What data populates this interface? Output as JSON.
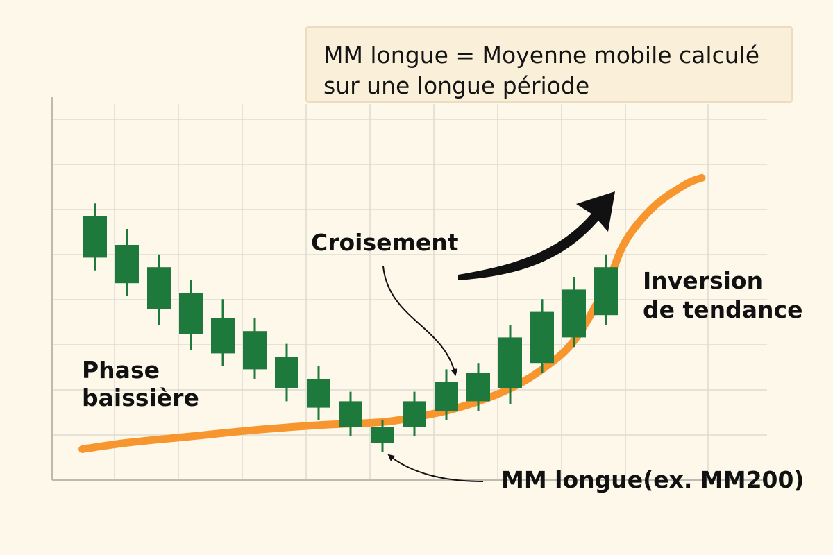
{
  "note": {
    "line1": "MM longue = Moyenne mobile calculé",
    "line2": "sur une longue période"
  },
  "labels": {
    "phase_line1": "Phase",
    "phase_line2": "baissière",
    "croisement": "Croisement",
    "inversion_line1": "Inversion",
    "inversion_line2": "de tendance",
    "mm_longue": "MM longue(ex. MM200)"
  },
  "colors": {
    "background": "#fdf8ea",
    "candle": "#1e7a3c",
    "moving_average": "#f7962e",
    "arrow": "#111111",
    "grid": "#dedbd2",
    "axis": "#bdbab2"
  },
  "chart_data": {
    "type": "candlestick",
    "grid": true,
    "x": [
      1,
      2,
      3,
      4,
      5,
      6,
      7,
      8,
      9,
      10,
      11,
      12,
      13,
      14,
      15,
      16,
      17,
      18
    ],
    "ylim": [
      0,
      100
    ],
    "candles": [
      {
        "x": 1,
        "open": 74,
        "close": 61,
        "high": 78,
        "low": 57
      },
      {
        "x": 2,
        "open": 65,
        "close": 53,
        "high": 70,
        "low": 49
      },
      {
        "x": 3,
        "open": 58,
        "close": 45,
        "high": 62,
        "low": 40
      },
      {
        "x": 4,
        "open": 50,
        "close": 37,
        "high": 54,
        "low": 32
      },
      {
        "x": 5,
        "open": 42,
        "close": 31,
        "high": 48,
        "low": 27
      },
      {
        "x": 6,
        "open": 38,
        "close": 26,
        "high": 42,
        "low": 23
      },
      {
        "x": 7,
        "open": 30,
        "close": 20,
        "high": 34,
        "low": 16
      },
      {
        "x": 8,
        "open": 23,
        "close": 14,
        "high": 27,
        "low": 10
      },
      {
        "x": 9,
        "open": 16,
        "close": 8,
        "high": 19,
        "low": 5
      },
      {
        "x": 10,
        "open": 8,
        "close": 3,
        "high": 10,
        "low": 0
      },
      {
        "x": 11,
        "open": 8,
        "close": 16,
        "high": 19,
        "low": 5
      },
      {
        "x": 12,
        "open": 13,
        "close": 22,
        "high": 26,
        "low": 10
      },
      {
        "x": 13,
        "open": 16,
        "close": 25,
        "high": 28,
        "low": 13
      },
      {
        "x": 14,
        "open": 20,
        "close": 36,
        "high": 40,
        "low": 15
      },
      {
        "x": 15,
        "open": 28,
        "close": 44,
        "high": 48,
        "low": 25
      },
      {
        "x": 16,
        "open": 36,
        "close": 51,
        "high": 55,
        "low": 33
      },
      {
        "x": 17,
        "open": 43,
        "close": 58,
        "high": 62,
        "low": 40
      }
    ],
    "moving_average": [
      {
        "x": 0.6,
        "y": 1
      },
      {
        "x": 2,
        "y": 3
      },
      {
        "x": 4,
        "y": 5
      },
      {
        "x": 6,
        "y": 7
      },
      {
        "x": 8,
        "y": 8.5
      },
      {
        "x": 10,
        "y": 9.5
      },
      {
        "x": 11,
        "y": 11
      },
      {
        "x": 12,
        "y": 13
      },
      {
        "x": 13,
        "y": 16
      },
      {
        "x": 14,
        "y": 20
      },
      {
        "x": 15,
        "y": 26
      },
      {
        "x": 16,
        "y": 35
      },
      {
        "x": 17,
        "y": 52
      },
      {
        "x": 17.6,
        "y": 66
      },
      {
        "x": 18.5,
        "y": 77
      },
      {
        "x": 19.5,
        "y": 84
      },
      {
        "x": 20,
        "y": 86
      }
    ]
  }
}
